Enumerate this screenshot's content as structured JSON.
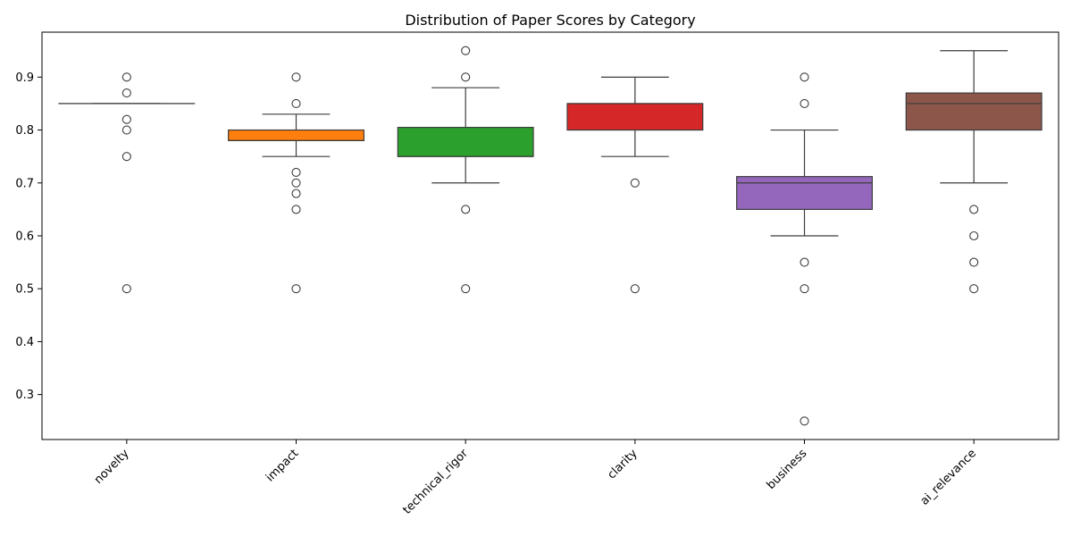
{
  "chart_data": {
    "type": "box",
    "title": "Distribution of Paper Scores by Category",
    "xlabel": "",
    "ylabel": "",
    "ylim": [
      0.215,
      0.985
    ],
    "yticks": [
      0.3,
      0.4,
      0.5,
      0.6,
      0.7,
      0.8,
      0.9
    ],
    "ytick_labels": [
      "0.3",
      "0.4",
      "0.5",
      "0.6",
      "0.7",
      "0.8",
      "0.9"
    ],
    "categories": [
      "novelty",
      "impact",
      "technical_rigor",
      "clarity",
      "business",
      "ai_relevance"
    ],
    "grid": false,
    "series": [
      {
        "category": "novelty",
        "color": "#1f77b4",
        "whisker_low": 0.85,
        "q1": 0.85,
        "median": 0.85,
        "q3": 0.85,
        "whisker_high": 0.85,
        "outliers": [
          0.9,
          0.87,
          0.82,
          0.8,
          0.75,
          0.5
        ]
      },
      {
        "category": "impact",
        "color": "#ff7f0e",
        "whisker_low": 0.75,
        "q1": 0.78,
        "median": 0.78,
        "q3": 0.8,
        "whisker_high": 0.83,
        "outliers": [
          0.9,
          0.85,
          0.72,
          0.7,
          0.68,
          0.65,
          0.5
        ]
      },
      {
        "category": "technical_rigor",
        "color": "#2ca02c",
        "whisker_low": 0.7,
        "q1": 0.75,
        "median": 0.75,
        "q3": 0.805,
        "whisker_high": 0.88,
        "outliers": [
          0.95,
          0.9,
          0.65,
          0.5
        ]
      },
      {
        "category": "clarity",
        "color": "#d62728",
        "whisker_low": 0.75,
        "q1": 0.8,
        "median": 0.85,
        "q3": 0.85,
        "whisker_high": 0.9,
        "outliers": [
          0.7,
          0.5
        ]
      },
      {
        "category": "business",
        "color": "#9467bd",
        "whisker_low": 0.6,
        "q1": 0.65,
        "median": 0.7,
        "q3": 0.712,
        "whisker_high": 0.8,
        "outliers": [
          0.9,
          0.85,
          0.55,
          0.5,
          0.25
        ]
      },
      {
        "category": "ai_relevance",
        "color": "#8c564b",
        "whisker_low": 0.7,
        "q1": 0.8,
        "median": 0.85,
        "q3": 0.87,
        "whisker_high": 0.95,
        "outliers": [
          0.65,
          0.6,
          0.55,
          0.5
        ]
      }
    ]
  }
}
